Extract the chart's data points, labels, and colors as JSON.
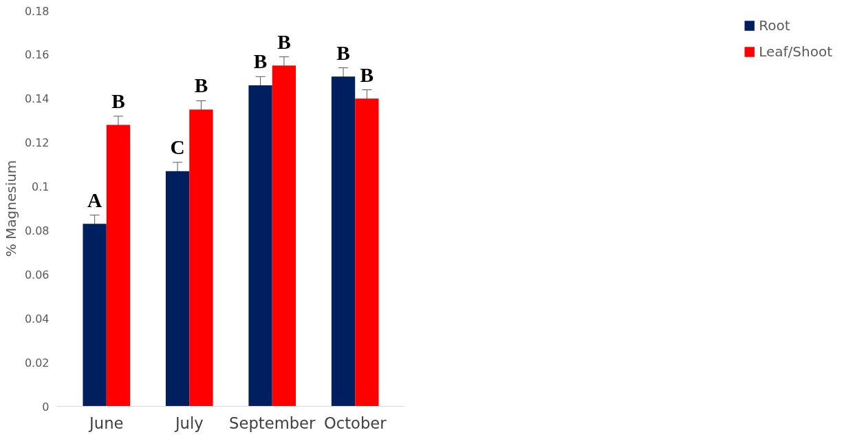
{
  "chart_data": {
    "type": "bar",
    "ylabel": "% Magnesium",
    "categories": [
      "June",
      "July",
      "September",
      "October"
    ],
    "series": [
      {
        "name": "Root",
        "color": "#001f5f",
        "values": [
          0.083,
          0.107,
          0.146,
          0.15
        ],
        "errors": [
          0.004,
          0.004,
          0.004,
          0.004
        ],
        "value_labels": [
          "A",
          "C",
          "B",
          "B"
        ]
      },
      {
        "name": "Leaf/Shoot",
        "color": "#ff0000",
        "values": [
          0.128,
          0.135,
          0.155,
          0.14
        ],
        "errors": [
          0.004,
          0.004,
          0.004,
          0.004
        ],
        "value_labels": [
          "B",
          "B",
          "B",
          "B"
        ]
      }
    ],
    "ylim": [
      0,
      0.18
    ],
    "yticks": [
      0,
      0.02,
      0.04,
      0.06,
      0.08,
      0.1,
      0.12,
      0.14,
      0.16,
      0.18
    ],
    "grid": false,
    "legend": "right"
  }
}
